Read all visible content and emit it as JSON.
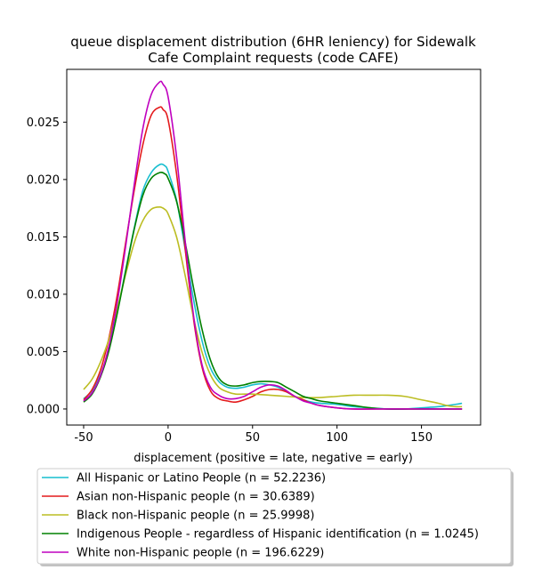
{
  "chart_data": {
    "type": "line",
    "title_line1": "queue displacement distribution (6HR leniency) for Sidewalk",
    "title_line2": "Cafe Complaint  requests (code CAFE)",
    "xlabel": "displacement (positive = late, negative = early)",
    "ylabel": "",
    "xlim": [
      -60,
      185
    ],
    "ylim": [
      -0.0014,
      0.0296
    ],
    "x_ticks": [
      -50,
      0,
      50,
      100,
      150
    ],
    "y_ticks": [
      0.0,
      0.005,
      0.01,
      0.015,
      0.02,
      0.025
    ],
    "y_tick_labels": [
      "0.000",
      "0.005",
      "0.010",
      "0.015",
      "0.020",
      "0.025"
    ],
    "grid": false,
    "legend_position": "below plot",
    "series": [
      {
        "name": "All Hispanic or Latino People (n = 52.2236)",
        "color": "#17becf",
        "points": [
          [
            -50,
            0.0009
          ],
          [
            -45,
            0.0016
          ],
          [
            -40,
            0.003
          ],
          [
            -35,
            0.0052
          ],
          [
            -30,
            0.0085
          ],
          [
            -25,
            0.0122
          ],
          [
            -20,
            0.0158
          ],
          [
            -15,
            0.019
          ],
          [
            -10,
            0.0206
          ],
          [
            -5,
            0.0213
          ],
          [
            -2,
            0.0212
          ],
          [
            0,
            0.0207
          ],
          [
            5,
            0.0182
          ],
          [
            10,
            0.014
          ],
          [
            15,
            0.0096
          ],
          [
            20,
            0.006
          ],
          [
            25,
            0.0036
          ],
          [
            30,
            0.0024
          ],
          [
            35,
            0.0019
          ],
          [
            40,
            0.0018
          ],
          [
            45,
            0.0019
          ],
          [
            50,
            0.0021
          ],
          [
            55,
            0.0022
          ],
          [
            60,
            0.0021
          ],
          [
            65,
            0.0019
          ],
          [
            70,
            0.0015
          ],
          [
            75,
            0.0011
          ],
          [
            80,
            0.0008
          ],
          [
            85,
            0.0006
          ],
          [
            90,
            0.0005
          ],
          [
            100,
            0.0004
          ],
          [
            110,
            0.0002
          ],
          [
            120,
            0.0001
          ],
          [
            130,
            0.0
          ],
          [
            140,
            0.0
          ],
          [
            150,
            0.0001
          ],
          [
            160,
            0.0002
          ],
          [
            170,
            0.0004
          ],
          [
            174,
            0.0005
          ]
        ]
      },
      {
        "name": "Asian non-Hispanic people (n = 30.6389)",
        "color": "#e41a1c",
        "points": [
          [
            -50,
            0.0008
          ],
          [
            -45,
            0.0017
          ],
          [
            -40,
            0.0034
          ],
          [
            -35,
            0.0062
          ],
          [
            -30,
            0.01
          ],
          [
            -25,
            0.0146
          ],
          [
            -20,
            0.0191
          ],
          [
            -15,
            0.023
          ],
          [
            -10,
            0.0256
          ],
          [
            -5,
            0.0263
          ],
          [
            -3,
            0.0261
          ],
          [
            0,
            0.0252
          ],
          [
            5,
            0.0205
          ],
          [
            10,
            0.0141
          ],
          [
            15,
            0.0079
          ],
          [
            20,
            0.0037
          ],
          [
            25,
            0.0016
          ],
          [
            30,
            0.0009
          ],
          [
            35,
            0.0007
          ],
          [
            40,
            0.0006
          ],
          [
            45,
            0.0008
          ],
          [
            50,
            0.0011
          ],
          [
            55,
            0.0015
          ],
          [
            60,
            0.0017
          ],
          [
            65,
            0.0017
          ],
          [
            70,
            0.0015
          ],
          [
            75,
            0.0011
          ],
          [
            80,
            0.0008
          ],
          [
            85,
            0.0005
          ],
          [
            90,
            0.0003
          ],
          [
            100,
            0.0001
          ],
          [
            110,
            0.0
          ],
          [
            130,
            0.0
          ],
          [
            150,
            0.0
          ],
          [
            174,
            0.0
          ]
        ]
      },
      {
        "name": "Black non-Hispanic people (n = 25.9998)",
        "color": "#bcbd22",
        "points": [
          [
            -50,
            0.0017
          ],
          [
            -45,
            0.0026
          ],
          [
            -40,
            0.0041
          ],
          [
            -35,
            0.0061
          ],
          [
            -30,
            0.0088
          ],
          [
            -25,
            0.0118
          ],
          [
            -20,
            0.0145
          ],
          [
            -15,
            0.0164
          ],
          [
            -10,
            0.0174
          ],
          [
            -5,
            0.0176
          ],
          [
            -2,
            0.0174
          ],
          [
            0,
            0.017
          ],
          [
            5,
            0.015
          ],
          [
            10,
            0.0117
          ],
          [
            15,
            0.008
          ],
          [
            20,
            0.005
          ],
          [
            25,
            0.003
          ],
          [
            30,
            0.0019
          ],
          [
            35,
            0.0015
          ],
          [
            40,
            0.0013
          ],
          [
            45,
            0.0013
          ],
          [
            50,
            0.0013
          ],
          [
            60,
            0.0012
          ],
          [
            70,
            0.0011
          ],
          [
            80,
            0.001
          ],
          [
            90,
            0.001
          ],
          [
            100,
            0.0011
          ],
          [
            110,
            0.0012
          ],
          [
            120,
            0.0012
          ],
          [
            130,
            0.0012
          ],
          [
            140,
            0.0011
          ],
          [
            150,
            0.0008
          ],
          [
            160,
            0.0005
          ],
          [
            165,
            0.0003
          ],
          [
            170,
            0.0002
          ],
          [
            174,
            0.0002
          ]
        ]
      },
      {
        "name": "Indigenous People - regardless of Hispanic identification (n = 1.0245)",
        "color": "#008000",
        "points": [
          [
            -50,
            0.0006
          ],
          [
            -45,
            0.0013
          ],
          [
            -40,
            0.0028
          ],
          [
            -35,
            0.0051
          ],
          [
            -30,
            0.0084
          ],
          [
            -25,
            0.0121
          ],
          [
            -20,
            0.0157
          ],
          [
            -15,
            0.0186
          ],
          [
            -10,
            0.0201
          ],
          [
            -5,
            0.0206
          ],
          [
            -2,
            0.0205
          ],
          [
            0,
            0.0201
          ],
          [
            5,
            0.0181
          ],
          [
            10,
            0.0146
          ],
          [
            15,
            0.0106
          ],
          [
            20,
            0.007
          ],
          [
            25,
            0.0043
          ],
          [
            30,
            0.0027
          ],
          [
            35,
            0.0021
          ],
          [
            40,
            0.002
          ],
          [
            45,
            0.0021
          ],
          [
            50,
            0.0023
          ],
          [
            55,
            0.0024
          ],
          [
            60,
            0.0024
          ],
          [
            65,
            0.0023
          ],
          [
            70,
            0.0019
          ],
          [
            75,
            0.0015
          ],
          [
            80,
            0.0011
          ],
          [
            85,
            0.0009
          ],
          [
            90,
            0.0007
          ],
          [
            100,
            0.0005
          ],
          [
            110,
            0.0003
          ],
          [
            120,
            0.0001
          ],
          [
            130,
            0.0
          ],
          [
            150,
            0.0
          ],
          [
            174,
            0.0
          ]
        ]
      },
      {
        "name": "White non-Hispanic people (n = 196.6229)",
        "color": "#bf00bf",
        "points": [
          [
            -50,
            0.0007
          ],
          [
            -45,
            0.0014
          ],
          [
            -40,
            0.0029
          ],
          [
            -35,
            0.0055
          ],
          [
            -30,
            0.0094
          ],
          [
            -25,
            0.0143
          ],
          [
            -20,
            0.0196
          ],
          [
            -15,
            0.0244
          ],
          [
            -10,
            0.0274
          ],
          [
            -5,
            0.0285
          ],
          [
            -3,
            0.0283
          ],
          [
            0,
            0.0272
          ],
          [
            5,
            0.022
          ],
          [
            10,
            0.0148
          ],
          [
            15,
            0.0082
          ],
          [
            20,
            0.0039
          ],
          [
            25,
            0.0019
          ],
          [
            30,
            0.0012
          ],
          [
            35,
            0.0009
          ],
          [
            40,
            0.0009
          ],
          [
            45,
            0.0011
          ],
          [
            50,
            0.0015
          ],
          [
            55,
            0.0019
          ],
          [
            60,
            0.0021
          ],
          [
            65,
            0.002
          ],
          [
            70,
            0.0016
          ],
          [
            75,
            0.0011
          ],
          [
            80,
            0.0007
          ],
          [
            85,
            0.0005
          ],
          [
            90,
            0.0003
          ],
          [
            100,
            0.0001
          ],
          [
            110,
            0.0
          ],
          [
            130,
            0.0
          ],
          [
            150,
            0.0
          ],
          [
            174,
            0.0
          ]
        ]
      }
    ]
  }
}
